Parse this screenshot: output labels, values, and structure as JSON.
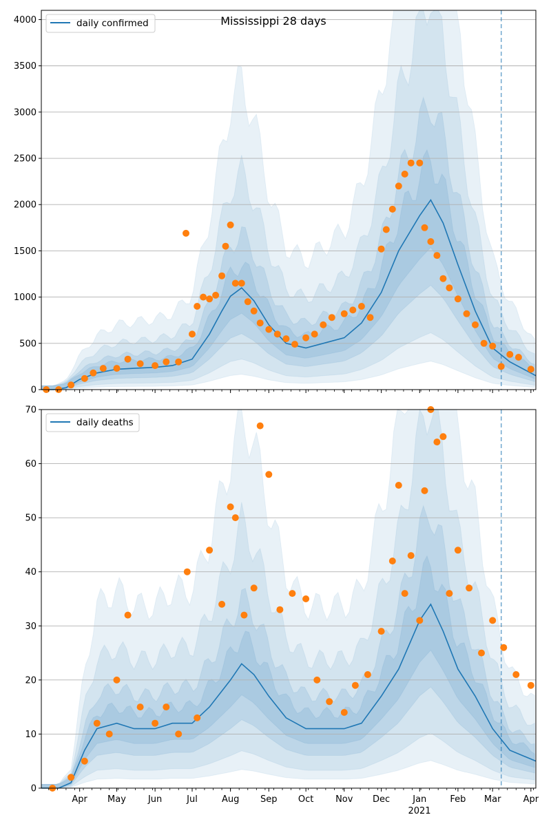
{
  "chart_data": [
    {
      "type": "line",
      "title": "Mississippi 28 days",
      "xlabel": "",
      "ylabel": "",
      "ylim": [
        0,
        4100
      ],
      "xlim": [
        "2020-03-01",
        "2021-04-05"
      ],
      "yticks": [
        0,
        500,
        1000,
        1500,
        2000,
        2500,
        3000,
        3500,
        4000
      ],
      "grid": "horizontal",
      "legend": "top-left",
      "legend_entries": [
        "daily confirmed"
      ],
      "forecast_start": "2021-03-08",
      "series": [
        {
          "name": "daily confirmed",
          "kind": "line",
          "color": "#1f77b4",
          "x": [
            "2020-03-01",
            "2020-03-11",
            "2020-03-21",
            "2020-04-01",
            "2020-04-15",
            "2020-05-01",
            "2020-05-15",
            "2020-06-01",
            "2020-06-15",
            "2020-07-01",
            "2020-07-15",
            "2020-07-25",
            "2020-08-01",
            "2020-08-10",
            "2020-08-20",
            "2020-09-01",
            "2020-09-15",
            "2020-10-01",
            "2020-10-15",
            "2020-11-01",
            "2020-11-15",
            "2020-12-01",
            "2020-12-15",
            "2021-01-01",
            "2021-01-10",
            "2021-01-20",
            "2021-02-01",
            "2021-02-15",
            "2021-03-01",
            "2021-03-15",
            "2021-04-05"
          ],
          "values": [
            0,
            0,
            20,
            110,
            180,
            220,
            230,
            240,
            260,
            330,
            600,
            850,
            1010,
            1100,
            960,
            700,
            500,
            450,
            500,
            560,
            720,
            1050,
            1500,
            1880,
            2050,
            1800,
            1350,
            850,
            450,
            300,
            150
          ]
        },
        {
          "name": "observed daily confirmed",
          "kind": "points",
          "color": "#ff7f0e",
          "x": [
            "2020-03-05",
            "2020-03-15",
            "2020-03-25",
            "2020-04-05",
            "2020-04-12",
            "2020-04-20",
            "2020-05-01",
            "2020-05-10",
            "2020-05-20",
            "2020-06-01",
            "2020-06-10",
            "2020-06-20",
            "2020-06-26",
            "2020-07-01",
            "2020-07-05",
            "2020-07-10",
            "2020-07-15",
            "2020-07-20",
            "2020-07-25",
            "2020-07-28",
            "2020-08-01",
            "2020-08-05",
            "2020-08-10",
            "2020-08-15",
            "2020-08-20",
            "2020-08-25",
            "2020-09-01",
            "2020-09-08",
            "2020-09-15",
            "2020-09-22",
            "2020-10-01",
            "2020-10-08",
            "2020-10-15",
            "2020-10-22",
            "2020-11-01",
            "2020-11-08",
            "2020-11-15",
            "2020-11-22",
            "2020-12-01",
            "2020-12-05",
            "2020-12-10",
            "2020-12-15",
            "2020-12-20",
            "2020-12-25",
            "2021-01-01",
            "2021-01-05",
            "2021-01-10",
            "2021-01-15",
            "2021-01-20",
            "2021-01-25",
            "2021-02-01",
            "2021-02-08",
            "2021-02-15",
            "2021-02-22",
            "2021-03-01",
            "2021-03-08",
            "2021-03-15",
            "2021-03-22",
            "2021-04-01"
          ],
          "values": [
            0,
            0,
            50,
            120,
            180,
            230,
            230,
            330,
            280,
            260,
            300,
            300,
            1690,
            600,
            900,
            1000,
            980,
            1020,
            1230,
            1550,
            1780,
            1150,
            1150,
            950,
            850,
            720,
            650,
            600,
            550,
            490,
            560,
            600,
            700,
            780,
            820,
            860,
            900,
            780,
            1520,
            1730,
            1950,
            2200,
            2330,
            2450,
            2450,
            1750,
            1600,
            1450,
            1200,
            1100,
            980,
            820,
            700,
            500,
            470,
            250,
            380,
            350,
            220
          ]
        }
      ]
    },
    {
      "type": "line",
      "title": "",
      "xlabel": "",
      "ylabel": "",
      "ylim": [
        0,
        70
      ],
      "xlim": [
        "2020-03-01",
        "2021-04-05"
      ],
      "yticks": [
        0,
        10,
        20,
        30,
        40,
        50,
        60,
        70
      ],
      "xticks": [
        "Apr",
        "May",
        "Jun",
        "Jul",
        "Aug",
        "Sep",
        "Oct",
        "Nov",
        "Dec",
        "Jan",
        "Feb",
        "Mar",
        "Apr"
      ],
      "xtick_dates": [
        "2020-04-01",
        "2020-05-01",
        "2020-06-01",
        "2020-07-01",
        "2020-08-01",
        "2020-09-01",
        "2020-10-01",
        "2020-11-01",
        "2020-12-01",
        "2021-01-01",
        "2021-02-01",
        "2021-03-01",
        "2021-04-01"
      ],
      "year_label": "2021",
      "grid": "horizontal",
      "legend": "top-left",
      "legend_entries": [
        "daily deaths"
      ],
      "forecast_start": "2021-03-08",
      "series": [
        {
          "name": "daily deaths",
          "kind": "line",
          "color": "#1f77b4",
          "x": [
            "2020-03-01",
            "2020-03-15",
            "2020-03-25",
            "2020-04-05",
            "2020-04-15",
            "2020-05-01",
            "2020-05-15",
            "2020-06-01",
            "2020-06-15",
            "2020-07-01",
            "2020-07-15",
            "2020-08-01",
            "2020-08-10",
            "2020-08-20",
            "2020-09-01",
            "2020-09-15",
            "2020-10-01",
            "2020-10-15",
            "2020-11-01",
            "2020-11-15",
            "2020-12-01",
            "2020-12-15",
            "2021-01-01",
            "2021-01-10",
            "2021-01-20",
            "2021-02-01",
            "2021-02-15",
            "2021-03-01",
            "2021-03-15",
            "2021-04-05"
          ],
          "values": [
            0,
            0,
            1,
            7,
            11,
            12,
            11,
            11,
            12,
            12,
            15,
            20,
            23,
            21,
            17,
            13,
            11,
            11,
            11,
            12,
            17,
            22,
            31,
            34,
            29,
            22,
            17,
            11,
            7,
            5
          ]
        },
        {
          "name": "observed daily deaths",
          "kind": "points",
          "color": "#ff7f0e",
          "x": [
            "2020-03-10",
            "2020-03-25",
            "2020-04-05",
            "2020-04-15",
            "2020-04-25",
            "2020-05-01",
            "2020-05-10",
            "2020-05-20",
            "2020-06-01",
            "2020-06-10",
            "2020-06-20",
            "2020-06-27",
            "2020-07-05",
            "2020-07-15",
            "2020-07-25",
            "2020-08-01",
            "2020-08-05",
            "2020-08-12",
            "2020-08-20",
            "2020-08-25",
            "2020-09-01",
            "2020-09-10",
            "2020-09-20",
            "2020-10-01",
            "2020-10-10",
            "2020-10-20",
            "2020-11-01",
            "2020-11-10",
            "2020-11-20",
            "2020-12-01",
            "2020-12-10",
            "2020-12-15",
            "2020-12-20",
            "2020-12-25",
            "2021-01-01",
            "2021-01-05",
            "2021-01-10",
            "2021-01-15",
            "2021-01-20",
            "2021-01-25",
            "2021-02-01",
            "2021-02-10",
            "2021-02-20",
            "2021-03-01",
            "2021-03-10",
            "2021-03-20",
            "2021-04-01"
          ],
          "values": [
            0,
            2,
            5,
            12,
            10,
            20,
            32,
            15,
            12,
            15,
            10,
            40,
            13,
            44,
            34,
            52,
            50,
            32,
            37,
            67,
            58,
            33,
            36,
            35,
            20,
            16,
            14,
            19,
            21,
            29,
            42,
            56,
            36,
            43,
            31,
            55,
            70,
            64,
            65,
            36,
            44,
            37,
            25,
            31,
            26,
            21,
            19
          ]
        }
      ]
    }
  ]
}
